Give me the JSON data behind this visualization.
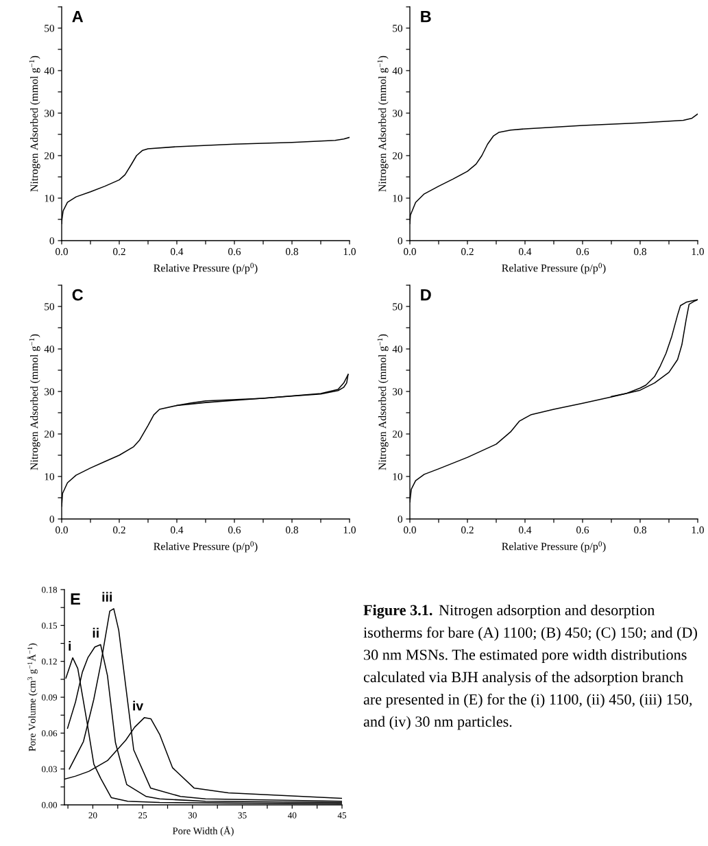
{
  "chart_data": [
    {
      "type": "line",
      "title": "A",
      "xlabel": "Relative Pressure (p/p$^{0}$)",
      "ylabel": "Nitrogen Adsorbed (mmol g$^{−1}$)",
      "xlim": [
        0,
        1
      ],
      "ylim": [
        0,
        55
      ],
      "xticks": [
        {
          "value": 0,
          "label": "0.0"
        },
        {
          "value": 0.1,
          "label": null
        },
        {
          "value": 0.2,
          "label": "0.2"
        },
        {
          "value": 0.3,
          "label": null
        },
        {
          "value": 0.4,
          "label": "0.4"
        },
        {
          "value": 0.5,
          "label": null
        },
        {
          "value": 0.6,
          "label": "0.6"
        },
        {
          "value": 0.7,
          "label": null
        },
        {
          "value": 0.8,
          "label": "0.8"
        },
        {
          "value": 0.9,
          "label": null
        },
        {
          "value": 1,
          "label": "1.0"
        }
      ],
      "yticks": [
        0,
        {
          "value": 5,
          "label": null
        },
        10,
        {
          "value": 15,
          "label": null
        },
        20,
        {
          "value": 25,
          "label": null
        },
        30,
        {
          "value": 35,
          "label": null
        },
        40,
        {
          "value": 45,
          "label": null
        },
        50,
        {
          "value": 55,
          "label": null
        }
      ],
      "series": [
        {
          "color": "#000000",
          "x": [
            0.0,
            0.001,
            0.005,
            0.02,
            0.05,
            0.1,
            0.15,
            0.2,
            0.22,
            0.24,
            0.26,
            0.28,
            0.3,
            0.4,
            0.6,
            0.8,
            0.95,
            0.98,
            1.0
          ],
          "values": [
            4,
            5,
            7,
            9,
            10.3,
            11.5,
            12.8,
            14.3,
            15.5,
            17.7,
            20,
            21.2,
            21.6,
            22.1,
            22.7,
            23.1,
            23.6,
            23.9,
            24.3
          ]
        }
      ]
    },
    {
      "type": "line",
      "title": "B",
      "xlabel": "Relative Pressure (p/p$^{0}$)",
      "ylabel": "Nitrogen Adsorbed (mmol g$^{−1}$)",
      "xlim": [
        0,
        1
      ],
      "ylim": [
        0,
        55
      ],
      "xticks": [
        {
          "value": 0,
          "label": "0.0"
        },
        {
          "value": 0.1,
          "label": null
        },
        {
          "value": 0.2,
          "label": "0.2"
        },
        {
          "value": 0.3,
          "label": null
        },
        {
          "value": 0.4,
          "label": "0.4"
        },
        {
          "value": 0.5,
          "label": null
        },
        {
          "value": 0.6,
          "label": "0.6"
        },
        {
          "value": 0.7,
          "label": null
        },
        {
          "value": 0.8,
          "label": "0.8"
        },
        {
          "value": 0.9,
          "label": null
        },
        {
          "value": 1,
          "label": "1.0"
        }
      ],
      "yticks": [
        0,
        {
          "value": 5,
          "label": null
        },
        10,
        {
          "value": 15,
          "label": null
        },
        20,
        {
          "value": 25,
          "label": null
        },
        30,
        {
          "value": 35,
          "label": null
        },
        40,
        {
          "value": 45,
          "label": null
        },
        50,
        {
          "value": 55,
          "label": null
        }
      ],
      "series": [
        {
          "color": "#000000",
          "x": [
            0.0,
            0.002,
            0.02,
            0.05,
            0.1,
            0.15,
            0.2,
            0.23,
            0.25,
            0.27,
            0.29,
            0.31,
            0.35,
            0.4,
            0.6,
            0.8,
            0.95,
            0.98,
            1.0
          ],
          "values": [
            4,
            6,
            9,
            11,
            12.8,
            14.5,
            16.3,
            18,
            20,
            22.7,
            24.6,
            25.5,
            26,
            26.3,
            27.1,
            27.7,
            28.3,
            28.8,
            29.8
          ]
        }
      ]
    },
    {
      "type": "line",
      "title": "C",
      "xlabel": "Relative Pressure (p/p$^{0}$)",
      "ylabel": "Nitrogen Adsorbed (mmol g$^{−1}$)",
      "xlim": [
        0,
        1
      ],
      "ylim": [
        0,
        55
      ],
      "xticks": [
        {
          "value": 0,
          "label": "0.0"
        },
        {
          "value": 0.1,
          "label": null
        },
        {
          "value": 0.2,
          "label": "0.2"
        },
        {
          "value": 0.3,
          "label": null
        },
        {
          "value": 0.4,
          "label": "0.4"
        },
        {
          "value": 0.5,
          "label": null
        },
        {
          "value": 0.6,
          "label": "0.6"
        },
        {
          "value": 0.7,
          "label": null
        },
        {
          "value": 0.8,
          "label": "0.8"
        },
        {
          "value": 0.9,
          "label": null
        },
        {
          "value": 1,
          "label": "1.0"
        }
      ],
      "yticks": [
        0,
        {
          "value": 5,
          "label": null
        },
        10,
        {
          "value": 15,
          "label": null
        },
        20,
        {
          "value": 25,
          "label": null
        },
        30,
        {
          "value": 35,
          "label": null
        },
        40,
        {
          "value": 45,
          "label": null
        },
        50,
        {
          "value": 55,
          "label": null
        }
      ],
      "series": [
        {
          "color": "#000000",
          "x": [
            0.0,
            0.003,
            0.02,
            0.05,
            0.1,
            0.15,
            0.2,
            0.25,
            0.27,
            0.3,
            0.32,
            0.34,
            0.4,
            0.5,
            0.6,
            0.8,
            0.9,
            0.96,
            0.98,
            0.99,
            0.995
          ],
          "values": [
            3,
            6,
            8.5,
            10.3,
            12,
            13.5,
            15,
            17,
            18.5,
            22,
            24.5,
            25.8,
            26.7,
            27.4,
            27.9,
            28.9,
            29.4,
            30.2,
            31,
            32,
            34
          ]
        },
        {
          "color": "#000000",
          "x": [
            0.995,
            0.98,
            0.96,
            0.9,
            0.7,
            0.5,
            0.45,
            0.4
          ],
          "values": [
            34,
            32,
            30.5,
            29.5,
            28.4,
            27.8,
            27.3,
            26.7
          ]
        }
      ]
    },
    {
      "type": "line",
      "title": "D",
      "xlabel": "Relative Pressure (p/p$^{0}$)",
      "ylabel": "Nitrogen Adsorbed (mmol g$^{−1}$)",
      "xlim": [
        0,
        1
      ],
      "ylim": [
        0,
        55
      ],
      "xticks": [
        {
          "value": 0,
          "label": "0.0"
        },
        {
          "value": 0.1,
          "label": null
        },
        {
          "value": 0.2,
          "label": "0.2"
        },
        {
          "value": 0.3,
          "label": null
        },
        {
          "value": 0.4,
          "label": "0.4"
        },
        {
          "value": 0.5,
          "label": null
        },
        {
          "value": 0.6,
          "label": "0.6"
        },
        {
          "value": 0.7,
          "label": null
        },
        {
          "value": 0.8,
          "label": "0.8"
        },
        {
          "value": 0.9,
          "label": null
        },
        {
          "value": 1,
          "label": "1.0"
        }
      ],
      "yticks": [
        0,
        {
          "value": 5,
          "label": null
        },
        10,
        {
          "value": 15,
          "label": null
        },
        20,
        {
          "value": 25,
          "label": null
        },
        30,
        {
          "value": 35,
          "label": null
        },
        40,
        {
          "value": 45,
          "label": null
        },
        50,
        {
          "value": 55,
          "label": null
        }
      ],
      "series": [
        {
          "color": "#000000",
          "x": [
            0.0,
            0.005,
            0.02,
            0.05,
            0.1,
            0.2,
            0.3,
            0.35,
            0.38,
            0.42,
            0.5,
            0.6,
            0.7,
            0.8,
            0.85,
            0.9,
            0.93,
            0.945,
            0.96,
            0.97,
            0.99,
            1.0
          ],
          "values": [
            4,
            7,
            9,
            10.5,
            11.8,
            14.5,
            17.6,
            20.5,
            23,
            24.5,
            25.8,
            27.2,
            28.7,
            30.3,
            32,
            34.5,
            37.5,
            41,
            47,
            50.5,
            51.3,
            51.6
          ]
        },
        {
          "color": "#000000",
          "x": [
            1.0,
            0.96,
            0.94,
            0.93,
            0.91,
            0.89,
            0.87,
            0.85,
            0.82,
            0.8,
            0.75,
            0.7
          ],
          "values": [
            51.6,
            51,
            50.2,
            48,
            43,
            39,
            36,
            33.5,
            31.5,
            30.8,
            29.5,
            28.8
          ]
        }
      ]
    },
    {
      "type": "line",
      "title": "E",
      "xlabel": "Pore Width (Å)",
      "ylabel": "Pore Volume (cm$^{3}$ g$^{−1}$Å$^{−1}$)",
      "xlim": [
        17.15,
        45
      ],
      "ylim": [
        0,
        0.18
      ],
      "xticks": [
        {
          "value": 17.5,
          "label": null
        },
        20,
        {
          "value": 22.5,
          "label": null
        },
        25,
        {
          "value": 27.5,
          "label": null
        },
        30,
        {
          "value": 32.5,
          "label": null
        },
        35,
        {
          "value": 37.5,
          "label": null
        },
        40,
        {
          "value": 42.5,
          "label": null
        },
        45
      ],
      "yticks": [
        {
          "value": 0,
          "label": "0.00"
        },
        {
          "value": 0.015,
          "label": null
        },
        {
          "value": 0.03,
          "label": "0.03"
        },
        {
          "value": 0.045,
          "label": null
        },
        {
          "value": 0.06,
          "label": "0.06"
        },
        {
          "value": 0.075,
          "label": null
        },
        {
          "value": 0.09,
          "label": "0.09"
        },
        {
          "value": 0.105,
          "label": null
        },
        {
          "value": 0.12,
          "label": "0.12"
        },
        {
          "value": 0.135,
          "label": null
        },
        {
          "value": 0.15,
          "label": "0.15"
        },
        {
          "value": 0.165,
          "label": null
        },
        {
          "value": 0.18,
          "label": "0.18"
        }
      ],
      "series": [
        {
          "name": "i",
          "color": "#000000",
          "x": [
            17.3,
            17.98,
            18.49,
            19.4,
            20.1,
            20.8,
            21.86,
            23.5,
            26.7,
            33.6,
            45
          ],
          "values": [
            0.106,
            0.123,
            0.114,
            0.07,
            0.034,
            0.022,
            0.006,
            0.003,
            0.002,
            0.0015,
            0.001
          ]
        },
        {
          "name": "ii",
          "color": "#000000",
          "x": [
            17.46,
            18.26,
            18.95,
            19.5,
            20.2,
            20.78,
            21.47,
            22.27,
            23.4,
            25.36,
            26.7,
            31.3,
            45
          ],
          "values": [
            0.064,
            0.086,
            0.111,
            0.123,
            0.132,
            0.134,
            0.108,
            0.052,
            0.017,
            0.007,
            0.005,
            0.003,
            0.002
          ]
        },
        {
          "name": "iii",
          "color": "#000000",
          "x": [
            17.64,
            19.06,
            20.09,
            20.78,
            21.7,
            22.1,
            22.6,
            24.1,
            25.8,
            28.8,
            31.3,
            45
          ],
          "values": [
            0.03,
            0.053,
            0.088,
            0.117,
            0.162,
            0.164,
            0.146,
            0.046,
            0.014,
            0.007,
            0.005,
            0.003
          ]
        },
        {
          "name": "iv",
          "color": "#000000",
          "x": [
            17.16,
            18.26,
            19.6,
            21.47,
            23.3,
            24.2,
            25.18,
            25.82,
            26.7,
            28.0,
            30.17,
            33.6,
            45
          ],
          "values": [
            0.0215,
            0.024,
            0.028,
            0.037,
            0.054,
            0.065,
            0.073,
            0.072,
            0.059,
            0.031,
            0.014,
            0.01,
            0.0055
          ]
        }
      ],
      "annotations": [
        "Figure 3.1.",
        "Nitrogen adsorption and desorption isotherms for bare (A) 1100; (B) 450; (C) 150; and (D) 30 nm MSNs. The estimated pore width distributions calculated via BJH analysis of the adsorption branch are presented in (E) for the (i) 1100, (ii) 450, (iii) 150, and (iv) 30 nm particles."
      ]
    }
  ]
}
